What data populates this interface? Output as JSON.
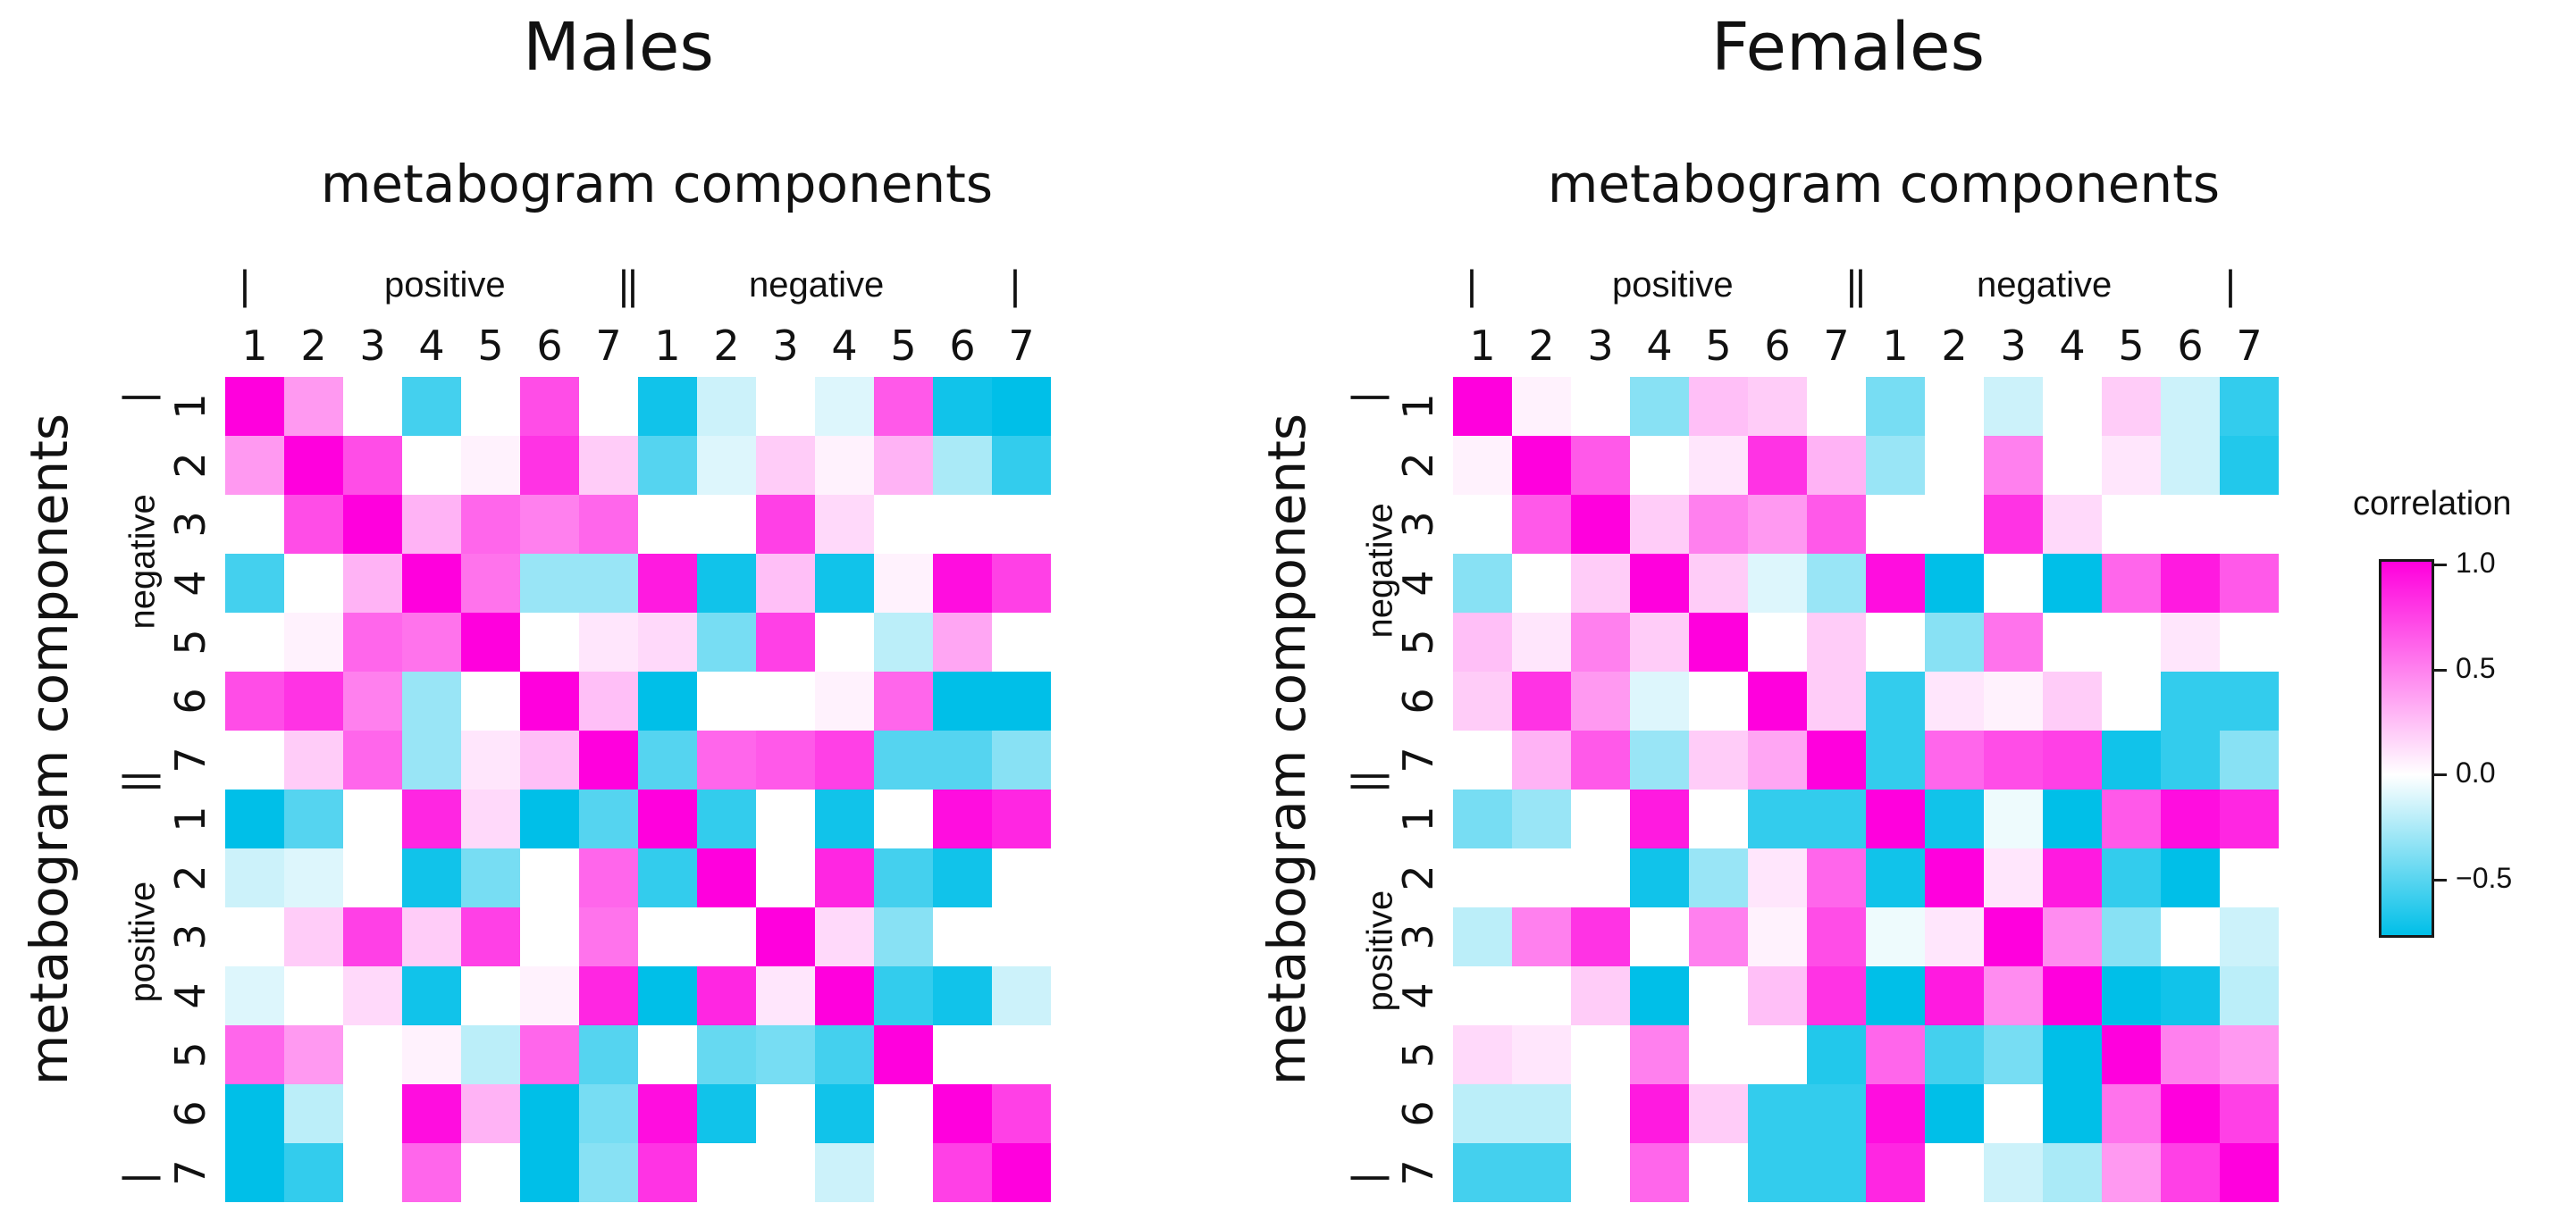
{
  "chart_data": [
    {
      "type": "heatmap",
      "title": "Males",
      "xlabel": "metabogram components",
      "ylabel": "metabogram components",
      "col_groups": [
        "positive",
        "negative"
      ],
      "row_groups": [
        "negative",
        "positive"
      ],
      "group_separator": "|",
      "col_labels": [
        "1",
        "2",
        "3",
        "4",
        "5",
        "6",
        "7",
        "1",
        "2",
        "3",
        "4",
        "5",
        "6",
        "7"
      ],
      "row_labels": [
        "1",
        "2",
        "3",
        "4",
        "5",
        "6",
        "7",
        "1",
        "2",
        "3",
        "4",
        "5",
        "6",
        "7"
      ],
      "values": [
        [
          1.0,
          0.4,
          0.0,
          -0.55,
          0.0,
          0.7,
          0.0,
          -0.7,
          -0.15,
          0.0,
          -0.1,
          0.65,
          -0.7,
          -0.75
        ],
        [
          0.4,
          1.0,
          0.7,
          0.0,
          0.05,
          0.8,
          0.2,
          -0.5,
          -0.1,
          0.2,
          0.05,
          0.3,
          -0.25,
          -0.6
        ],
        [
          0.0,
          0.7,
          1.0,
          0.3,
          0.6,
          0.5,
          0.6,
          0.0,
          0.0,
          0.75,
          0.15,
          0.0,
          0.0,
          0.0
        ],
        [
          -0.55,
          0.0,
          0.3,
          1.0,
          0.55,
          -0.3,
          -0.3,
          0.9,
          -0.7,
          0.25,
          -0.7,
          0.05,
          0.95,
          0.75
        ],
        [
          0.0,
          0.05,
          0.6,
          0.55,
          1.0,
          0.0,
          0.1,
          0.15,
          -0.4,
          0.75,
          0.0,
          -0.2,
          0.35,
          0.0
        ],
        [
          0.7,
          0.8,
          0.5,
          -0.3,
          0.0,
          1.0,
          0.25,
          -0.75,
          0.0,
          0.0,
          0.05,
          0.6,
          -0.75,
          -0.75
        ],
        [
          0.0,
          0.2,
          0.6,
          -0.3,
          0.1,
          0.25,
          1.0,
          -0.5,
          0.6,
          0.65,
          0.75,
          -0.5,
          -0.5,
          -0.35
        ],
        [
          -0.75,
          -0.5,
          0.0,
          0.85,
          0.15,
          -0.75,
          -0.5,
          1.0,
          -0.6,
          0.0,
          -0.7,
          0.0,
          0.95,
          0.85
        ],
        [
          -0.15,
          -0.1,
          0.0,
          -0.7,
          -0.4,
          0.0,
          0.6,
          -0.6,
          1.0,
          0.0,
          0.85,
          -0.55,
          -0.7,
          0.0
        ],
        [
          0.0,
          0.2,
          0.75,
          0.2,
          0.75,
          0.0,
          0.55,
          0.0,
          0.0,
          1.0,
          0.15,
          -0.35,
          0.0,
          0.0
        ],
        [
          -0.1,
          0.0,
          0.15,
          -0.7,
          0.0,
          0.05,
          0.85,
          -0.75,
          0.85,
          0.1,
          1.0,
          -0.6,
          -0.7,
          -0.15
        ],
        [
          0.6,
          0.4,
          0.0,
          0.05,
          -0.2,
          0.6,
          -0.5,
          0.0,
          -0.45,
          -0.4,
          -0.55,
          1.0,
          0.0,
          0.0
        ],
        [
          -0.75,
          -0.2,
          0.0,
          0.95,
          0.3,
          -0.75,
          -0.4,
          0.95,
          -0.7,
          0.0,
          -0.7,
          0.0,
          1.0,
          0.75
        ],
        [
          -0.75,
          -0.6,
          0.0,
          0.6,
          0.0,
          -0.75,
          -0.35,
          0.8,
          0.0,
          0.0,
          -0.15,
          0.0,
          0.75,
          1.0
        ]
      ]
    },
    {
      "type": "heatmap",
      "title": "Females",
      "xlabel": "metabogram components",
      "ylabel": "metabogram components",
      "col_groups": [
        "positive",
        "negative"
      ],
      "row_groups": [
        "negative",
        "positive"
      ],
      "group_separator": "|",
      "col_labels": [
        "1",
        "2",
        "3",
        "4",
        "5",
        "6",
        "7",
        "1",
        "2",
        "3",
        "4",
        "5",
        "6",
        "7"
      ],
      "row_labels": [
        "1",
        "2",
        "3",
        "4",
        "5",
        "6",
        "7",
        "1",
        "2",
        "3",
        "4",
        "5",
        "6",
        "7"
      ],
      "values": [
        [
          1.0,
          0.05,
          0.0,
          -0.35,
          0.25,
          0.2,
          0.0,
          -0.4,
          0.0,
          -0.15,
          0.0,
          0.2,
          -0.15,
          -0.6
        ],
        [
          0.05,
          1.0,
          0.65,
          0.0,
          0.1,
          0.8,
          0.3,
          -0.3,
          0.0,
          0.5,
          0.0,
          0.1,
          -0.15,
          -0.65
        ],
        [
          0.0,
          0.65,
          1.0,
          0.2,
          0.5,
          0.4,
          0.65,
          0.0,
          0.0,
          0.8,
          0.15,
          0.0,
          0.0,
          0.0
        ],
        [
          -0.35,
          0.0,
          0.2,
          1.0,
          0.2,
          -0.1,
          -0.3,
          0.95,
          -0.75,
          0.0,
          -0.75,
          0.6,
          0.9,
          0.65
        ],
        [
          0.25,
          0.1,
          0.5,
          0.2,
          1.0,
          0.0,
          0.2,
          0.0,
          -0.35,
          0.55,
          0.0,
          0.0,
          0.1,
          0.0
        ],
        [
          0.2,
          0.8,
          0.4,
          -0.1,
          0.0,
          1.0,
          0.2,
          -0.6,
          0.1,
          0.05,
          0.2,
          0.0,
          -0.6,
          -0.6
        ],
        [
          0.0,
          0.3,
          0.65,
          -0.3,
          0.2,
          0.35,
          1.0,
          -0.6,
          0.6,
          0.7,
          0.75,
          -0.7,
          -0.6,
          -0.35
        ],
        [
          -0.4,
          -0.3,
          0.0,
          0.9,
          0.0,
          -0.6,
          -0.6,
          1.0,
          -0.7,
          -0.05,
          -0.75,
          0.65,
          0.95,
          0.85
        ],
        [
          0.0,
          0.0,
          0.0,
          -0.7,
          -0.3,
          0.1,
          0.6,
          -0.7,
          1.0,
          0.1,
          0.9,
          -0.6,
          -0.75,
          0.0
        ],
        [
          -0.2,
          0.5,
          0.8,
          0.0,
          0.5,
          0.05,
          0.7,
          -0.05,
          0.1,
          1.0,
          0.45,
          -0.35,
          0.0,
          -0.15
        ],
        [
          0.0,
          0.0,
          0.2,
          -0.75,
          0.0,
          0.25,
          0.8,
          -0.75,
          0.9,
          0.45,
          1.0,
          -0.75,
          -0.7,
          -0.2
        ],
        [
          0.15,
          0.1,
          0.0,
          0.5,
          0.0,
          0.0,
          -0.65,
          0.6,
          -0.55,
          -0.4,
          -0.75,
          1.0,
          0.5,
          0.4
        ],
        [
          -0.2,
          -0.2,
          0.0,
          0.9,
          0.2,
          -0.6,
          -0.6,
          0.95,
          -0.75,
          0.0,
          -0.75,
          0.55,
          1.0,
          0.75
        ],
        [
          -0.55,
          -0.55,
          0.0,
          0.6,
          0.0,
          -0.6,
          -0.6,
          0.85,
          0.0,
          -0.15,
          -0.25,
          0.4,
          0.75,
          1.0
        ]
      ]
    }
  ],
  "legend": {
    "title": "correlation",
    "ticks": [
      "1.0",
      "0.5",
      "0.0",
      "−0.5"
    ],
    "tick_values": [
      1.0,
      0.5,
      0.0,
      -0.5
    ],
    "range": [
      -0.75,
      1.0
    ],
    "colors": {
      "high": "#ff00dd",
      "mid": "#ffffff",
      "low": "#00bfe8"
    }
  }
}
